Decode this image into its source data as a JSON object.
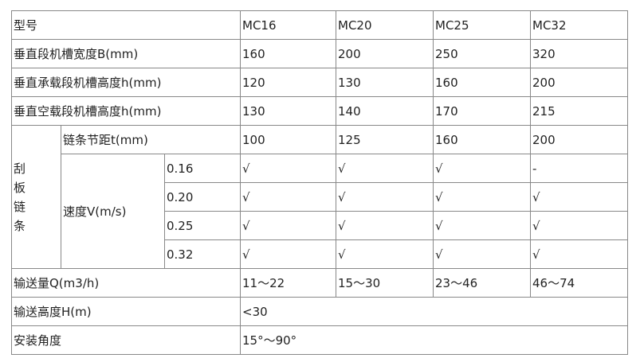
{
  "header": {
    "label": "型号",
    "models": [
      "MC16",
      "MC20",
      "MC25",
      "MC32"
    ]
  },
  "rows": {
    "width": {
      "label": "垂直段机槽宽度B(mm)",
      "values": [
        "160",
        "200",
        "250",
        "320"
      ]
    },
    "loaded_height": {
      "label": "垂直承载段机槽高度h(mm)",
      "values": [
        "120",
        "130",
        "160",
        "200"
      ]
    },
    "empty_height": {
      "label": "垂直空载段机槽高度h(mm)",
      "values": [
        "130",
        "140",
        "170",
        "215"
      ]
    }
  },
  "chain": {
    "group_label": [
      "刮",
      "板",
      "链",
      "条"
    ],
    "pitch": {
      "label": "链条节距t(mm)",
      "values": [
        "100",
        "125",
        "160",
        "200"
      ]
    },
    "speed": {
      "label": "速度V(m/s)",
      "rows": [
        {
          "speed": "0.16",
          "values": [
            "√",
            "√",
            "√",
            "-"
          ]
        },
        {
          "speed": "0.20",
          "values": [
            "√",
            "√",
            "√",
            "√"
          ]
        },
        {
          "speed": "0.25",
          "values": [
            "√",
            "√",
            "√",
            "√"
          ]
        },
        {
          "speed": "0.32",
          "values": [
            "√",
            "√",
            "√",
            "√"
          ]
        }
      ]
    }
  },
  "capacity": {
    "label": "输送量Q(m3/h)",
    "values": [
      "11～22",
      "15～30",
      "23～46",
      "46～74"
    ]
  },
  "lift_height": {
    "label": "输送高度H(m)",
    "value": "<30"
  },
  "angle": {
    "label": "安装角度",
    "value": "15°～90°"
  }
}
